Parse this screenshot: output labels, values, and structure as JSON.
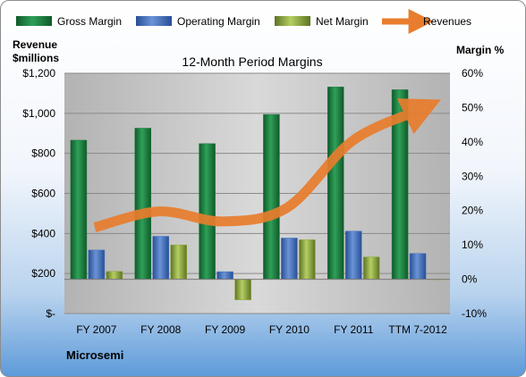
{
  "chart_data": {
    "type": "bar",
    "title": "12-Month Period Margins",
    "company": "Microsemi",
    "left_axis_label": [
      "Revenue",
      "$millions"
    ],
    "right_axis_label": "Margin %",
    "categories": [
      "FY 2007",
      "FY 2008",
      "FY 2009",
      "FY 2010",
      "FY 2011",
      "TTM 7-2012"
    ],
    "series": [
      {
        "name": "Gross Margin",
        "axis": "right",
        "kind": "bar",
        "color": "#1e7a3e",
        "values": [
          40.5,
          44,
          39.5,
          48,
          56,
          55.2
        ]
      },
      {
        "name": "Operating Margin",
        "axis": "right",
        "kind": "bar",
        "color": "#4472c4",
        "values": [
          8.5,
          12.5,
          2.2,
          12,
          14,
          7.5
        ]
      },
      {
        "name": "Net Margin",
        "axis": "right",
        "kind": "bar",
        "color": "#8faa3a",
        "values": [
          2.3,
          10,
          -6,
          11.5,
          6.5,
          0
        ]
      },
      {
        "name": "Revenues",
        "axis": "left",
        "kind": "line",
        "color": "#e87d2d",
        "values": [
          430,
          510,
          460,
          530,
          860,
          1010
        ]
      }
    ],
    "left_axis": {
      "min": 0,
      "max": 1200,
      "ticks": [
        "$-",
        "$200",
        "$400",
        "$600",
        "$800",
        "$1,000",
        "$1,200"
      ]
    },
    "right_axis": {
      "min": -10,
      "max": 60,
      "ticks": [
        "-10%",
        "0%",
        "10%",
        "20%",
        "30%",
        "40%",
        "50%",
        "60%"
      ]
    },
    "legend_position": "top",
    "grid": true
  }
}
